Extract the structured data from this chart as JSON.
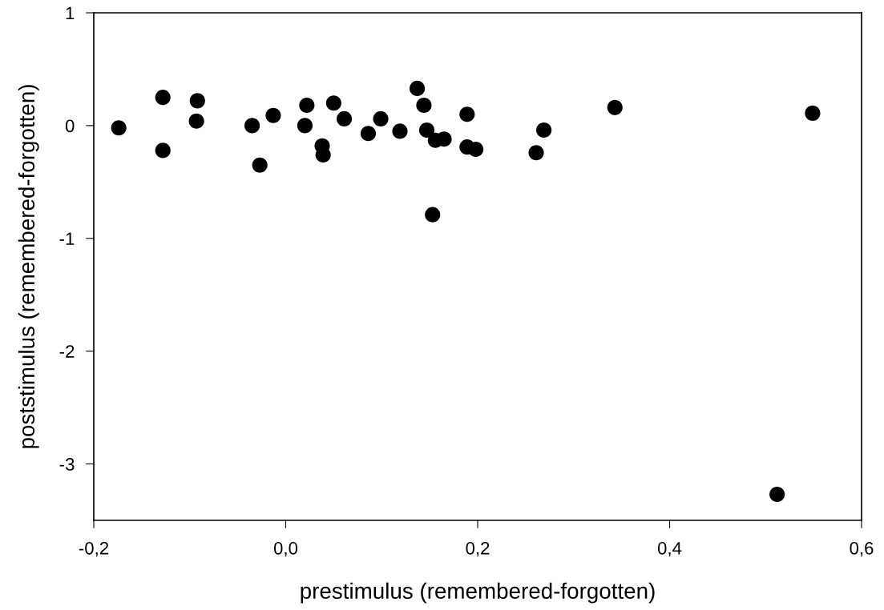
{
  "chart_data": {
    "type": "scatter",
    "xlabel": "prestimulus (remembered-forgotten)",
    "ylabel": "poststimulus (remembered-forgotten)",
    "xlim": [
      -0.2,
      0.6
    ],
    "ylim": [
      -3.5,
      1
    ],
    "xticks": [
      {
        "value": -0.2,
        "label": "-0,2"
      },
      {
        "value": 0.0,
        "label": "0,0"
      },
      {
        "value": 0.2,
        "label": "0,2"
      },
      {
        "value": 0.4,
        "label": "0,4"
      },
      {
        "value": 0.6,
        "label": "0,6"
      }
    ],
    "yticks": [
      -3,
      -2,
      -1,
      0,
      1
    ],
    "grid": false,
    "marker": "circle",
    "series": [
      {
        "color": "#000000",
        "x": [
          -0.174,
          -0.128,
          -0.128,
          -0.092,
          -0.093,
          -0.035,
          -0.027,
          -0.013,
          0.02,
          0.022,
          0.038,
          0.039,
          0.05,
          0.061,
          0.086,
          0.099,
          0.119,
          0.137,
          0.144,
          0.147,
          0.156,
          0.153,
          0.165,
          0.189,
          0.189,
          0.198,
          0.261,
          0.269,
          0.343,
          0.549,
          0.512
        ],
        "values": [
          -0.02,
          0.25,
          -0.22,
          0.22,
          0.04,
          0.0,
          -0.35,
          0.09,
          0.0,
          0.18,
          -0.18,
          -0.26,
          0.2,
          0.06,
          -0.07,
          0.06,
          -0.05,
          0.33,
          0.18,
          -0.04,
          -0.13,
          -0.79,
          -0.12,
          0.1,
          -0.19,
          -0.21,
          -0.24,
          -0.04,
          0.16,
          0.11,
          -3.27
        ]
      }
    ]
  }
}
